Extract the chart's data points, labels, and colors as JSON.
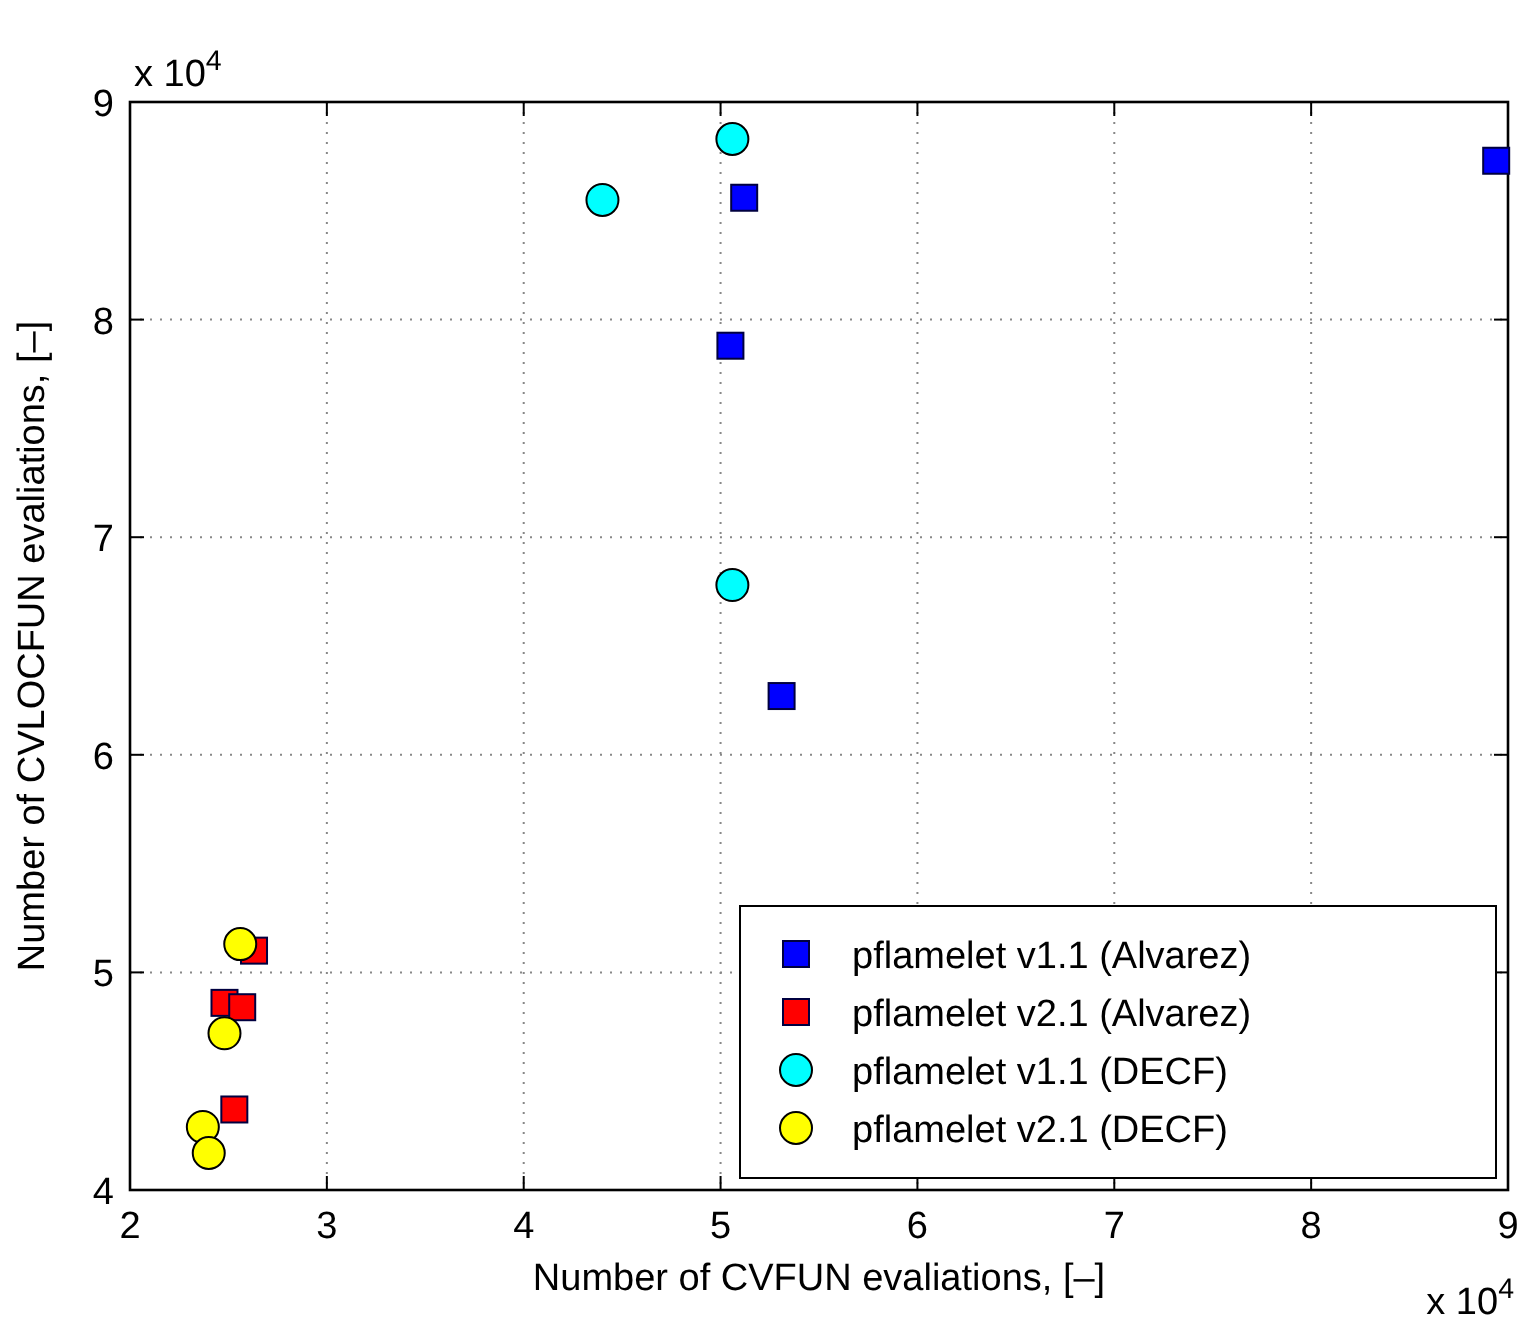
{
  "chart_data": {
    "type": "scatter",
    "xlabel": "Number of CVFUN evaliations, [–]",
    "ylabel": "Number of CVLOCFUN evaliations, [–]",
    "xlim": [
      2,
      9
    ],
    "xticks": [
      2,
      3,
      4,
      5,
      6,
      7,
      8,
      9
    ],
    "ylim": [
      4,
      9
    ],
    "yticks": [
      4,
      5,
      6,
      7,
      8,
      9
    ],
    "grid": true,
    "legend": "bottom right",
    "annotations": [
      "x 10$^{4}$",
      "x 10$^{4}$"
    ],
    "series": [
      {
        "name": "pflamelet v1.1 (Alvarez)",
        "color": "#0000ff",
        "marker": "square",
        "x": [
          8.94,
          5.12,
          5.05,
          5.31
        ],
        "values": [
          8.73,
          8.56,
          7.88,
          6.27
        ]
      },
      {
        "name": "pflamelet v2.1 (Alvarez)",
        "color": "#ff0000",
        "marker": "square",
        "x": [
          2.63,
          2.48,
          2.57,
          2.53
        ],
        "values": [
          5.1,
          4.86,
          4.84,
          4.37
        ]
      },
      {
        "name": "pflamelet v1.1 (DECF)",
        "color": "#00ffff",
        "marker": "circle",
        "x": [
          4.4,
          5.06,
          5.06
        ],
        "values": [
          8.55,
          8.83,
          6.78
        ]
      },
      {
        "name": "pflamelet v2.1 (DECF)",
        "color": "#ffff00",
        "marker": "circle",
        "x": [
          2.56,
          2.48,
          2.37,
          2.4
        ],
        "values": [
          5.13,
          4.72,
          4.29,
          4.17
        ]
      }
    ]
  }
}
